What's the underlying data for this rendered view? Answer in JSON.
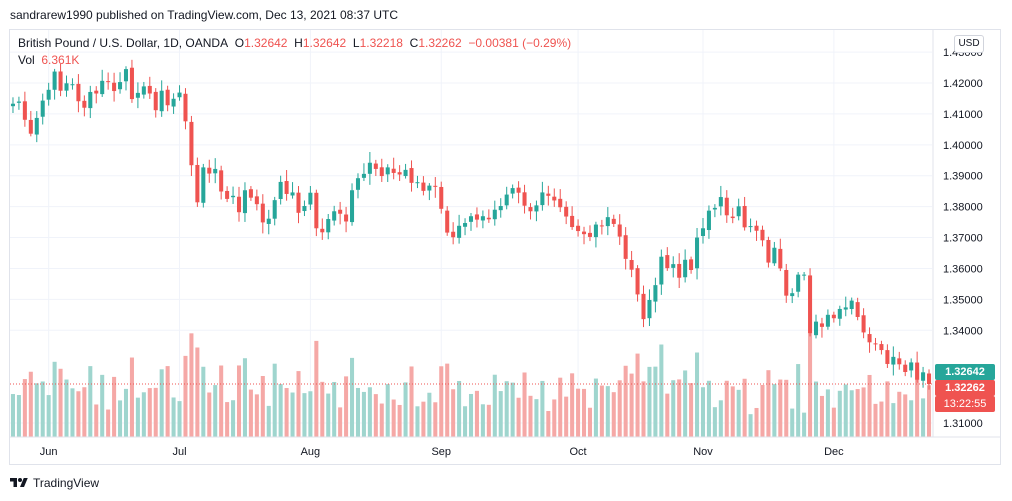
{
  "header": {
    "text": "sandrarew1990 published on TradingView.com, Dec 13, 2021 08:37 UTC"
  },
  "legend": {
    "symbol": "British Pound / U.S. Dollar, 1D, OANDA",
    "o_label": "O",
    "o_value": "1.32642",
    "h_label": "H",
    "h_value": "1.32642",
    "l_label": "L",
    "l_value": "1.32218",
    "c_label": "C",
    "c_value": "1.32262",
    "change": "−0.00381 (−0.29%)",
    "vol_label": "Vol",
    "vol_value": "6.361K"
  },
  "currency": "USD",
  "footer": {
    "brand": "TradingView"
  },
  "price_tags": {
    "open": "1.32642",
    "last": "1.32262",
    "countdown": "13:22:55"
  },
  "colors": {
    "up": "#26a69a",
    "down": "#ef5350",
    "up_vol": "#9fd5ce",
    "down_vol": "#f5a8a6",
    "grid": "#f0f3fa"
  },
  "chart_data": {
    "type": "candlestick",
    "title": "British Pound / U.S. Dollar, 1D, OANDA",
    "y_axis": {
      "ticks": [
        "1.43000",
        "1.42000",
        "1.41000",
        "1.40000",
        "1.39000",
        "1.38000",
        "1.37000",
        "1.36000",
        "1.35000",
        "1.34000",
        "1.31000"
      ],
      "range": [
        1.3055,
        1.4335
      ]
    },
    "x_axis": {
      "ticks": [
        "Jun",
        "Jul",
        "Aug",
        "Sep",
        "Oct",
        "Nov",
        "Dec"
      ]
    },
    "closes": [
      1.4133,
      1.414,
      1.4081,
      1.4036,
      1.4087,
      1.4143,
      1.4178,
      1.4237,
      1.4175,
      1.4199,
      1.4196,
      1.4141,
      1.412,
      1.4171,
      1.4166,
      1.4207,
      1.4204,
      1.4174,
      1.4203,
      1.4245,
      1.4148,
      1.4168,
      1.4189,
      1.4166,
      1.4112,
      1.4175,
      1.4128,
      1.4149,
      1.4169,
      1.4076,
      1.3934,
      1.3814,
      1.3927,
      1.3907,
      1.3922,
      1.3849,
      1.3825,
      1.3835,
      1.3782,
      1.3853,
      1.3829,
      1.3808,
      1.3749,
      1.3761,
      1.3821,
      1.388,
      1.3841,
      1.3846,
      1.378,
      1.3802,
      1.3845,
      1.373,
      1.3717,
      1.376,
      1.3785,
      1.3777,
      1.3752,
      1.3853,
      1.3892,
      1.3906,
      1.3942,
      1.3922,
      1.3899,
      1.3927,
      1.3909,
      1.3904,
      1.3919,
      1.3877,
      1.3879,
      1.3851,
      1.3868,
      1.3864,
      1.3793,
      1.3716,
      1.3701,
      1.3738,
      1.3747,
      1.3769,
      1.3758,
      1.3769,
      1.3759,
      1.379,
      1.3802,
      1.3839,
      1.386,
      1.3845,
      1.3803,
      1.3785,
      1.3804,
      1.3846,
      1.3835,
      1.382,
      1.3798,
      1.3768,
      1.3734,
      1.3721,
      1.3711,
      1.3702,
      1.3742,
      1.3736,
      1.3766,
      1.3744,
      1.3703,
      1.3631,
      1.3596,
      1.3516,
      1.3436,
      1.3498,
      1.3546,
      1.3638,
      1.3601,
      1.3614,
      1.357,
      1.3628,
      1.3595,
      1.37,
      1.373,
      1.3787,
      1.3796,
      1.3831,
      1.3772,
      1.3763,
      1.3801,
      1.3733,
      1.3737,
      1.3722,
      1.3691,
      1.3619,
      1.3667,
      1.36,
      1.3512,
      1.352,
      1.358,
      1.358,
      1.339,
      1.3428,
      1.3411,
      1.345,
      1.3439,
      1.3469,
      1.3474,
      1.3496,
      1.3443,
      1.3393,
      1.3361,
      1.3355,
      1.3336,
      1.3291,
      1.3314,
      1.329,
      1.3265,
      1.3296,
      1.324,
      1.3264,
      1.3226
    ]
  }
}
